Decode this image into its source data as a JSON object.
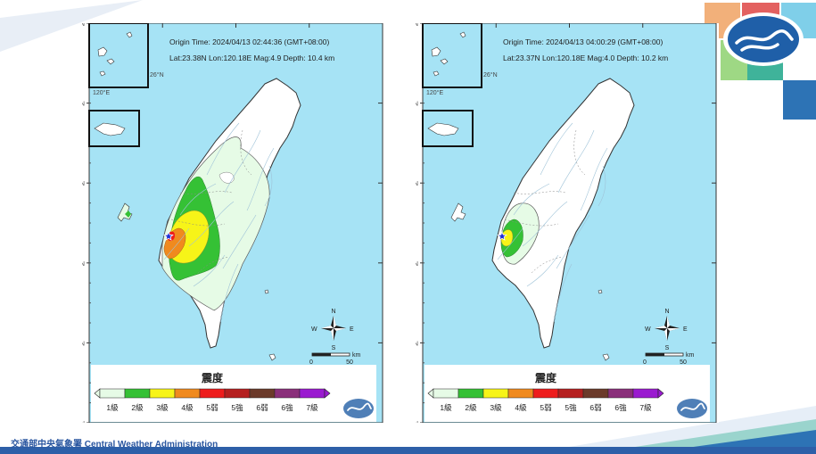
{
  "agency_footer": "交通部中央氣象署 Central Weather Administration",
  "colors": {
    "sea": "#a6e3f5",
    "land": "#ffffff",
    "level1": "#e6fbe6",
    "level2": "#35c135",
    "level3": "#f7f418",
    "level4": "#f08a1e",
    "level5w": "#ee1c1c",
    "level5s": "#b51f1f",
    "level6w": "#6b3a2a",
    "level6s": "#8a2f7a",
    "level7": "#9a1ad0",
    "accent_blue": "#2d73b5",
    "accent_teal": "#3fb39a",
    "accent_red": "#e0504f",
    "accent_peach": "#f2b07a"
  },
  "icons": [
    "cwa-logo-icon",
    "compass-rose-icon",
    "epicenter-star-icon"
  ],
  "maps": [
    {
      "origin_time": "Origin Time:  2024/04/13  02:44:36  (GMT+08:00)",
      "location": "Lat:23.38N  Lon:120.18E  Mag:4.9  Depth: 10.4 km",
      "magnitude": 4.9,
      "depth_km": 10.4,
      "max_intensity": "4級"
    },
    {
      "origin_time": "Origin Time:  2024/04/13  04:00:29  (GMT+08:00)",
      "location": "Lat:23.37N  Lon:120.18E  Mag:4.0  Depth: 10.2 km",
      "magnitude": 4.0,
      "depth_km": 10.2,
      "max_intensity": "3級"
    }
  ],
  "axes": {
    "lat_labels": [
      "26°N",
      "25°N",
      "24°N",
      "23°N",
      "22°N",
      "21°N"
    ],
    "lon_labels": [
      "119°E",
      "120°E",
      "121°E",
      "122°E",
      "123°E"
    ]
  },
  "inset": {
    "lat_label": "26°N",
    "lon_label": "120°E"
  },
  "compass": {
    "n": "N",
    "s": "S",
    "e": "E",
    "w": "W"
  },
  "scale_bar": {
    "zero": "0",
    "fifty": "50",
    "unit": "km"
  },
  "legend": {
    "title": "震度",
    "levels": [
      "1級",
      "2級",
      "3級",
      "4級",
      "5弱",
      "5強",
      "6弱",
      "6強",
      "7級"
    ]
  }
}
